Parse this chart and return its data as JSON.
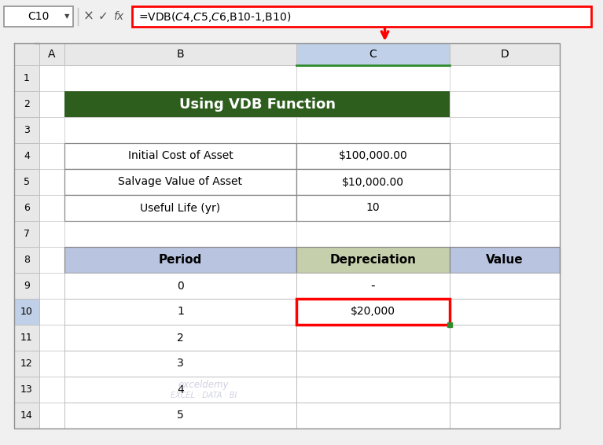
{
  "title": "Using VDB Function",
  "title_bg": "#2E5E1E",
  "title_fg": "#FFFFFF",
  "formula_bar_cell": "C10",
  "formula_bar_text": "=VDB($C$4,$C$5,$C$6,B10-1,B10)",
  "col_headers": [
    "A",
    "B",
    "C",
    "D"
  ],
  "row_headers": [
    "1",
    "2",
    "3",
    "4",
    "5",
    "6",
    "7",
    "8",
    "9",
    "10",
    "11",
    "12",
    "13",
    "14"
  ],
  "info_rows": [
    {
      "label": "Initial Cost of Asset",
      "value": "$100,000.00"
    },
    {
      "label": "Salvage Value of Asset",
      "value": "$10,000.00"
    },
    {
      "label": "Useful Life (yr)",
      "value": "10"
    }
  ],
  "table_header_bg": "#B8C4E0",
  "depreciation_header_bg": "#C6CFAB",
  "selected_cell_border": "#FF0000",
  "formula_box_border": "#FF0000",
  "arrow_color": "#FF0000",
  "grid_color": "#A0A0A0",
  "col_header_bg": "#E8E8E8",
  "col_header_selected_bg": "#C0D0E8",
  "row_header_bg": "#E8E8E8",
  "row_header_selected_bg": "#C0D0E8",
  "periods": [
    "0",
    "1",
    "2",
    "3",
    "4",
    "5"
  ],
  "depreciation_row1": "-",
  "depreciation_row2": "$20,000",
  "watermark_line1": "exceldemy",
  "watermark_line2": "EXCEL · DATA · BI",
  "bg_color": "#F0F0F0",
  "toolbar_bg": "#F0F0F0",
  "spreadsheet_bg": "#FFFFFF"
}
